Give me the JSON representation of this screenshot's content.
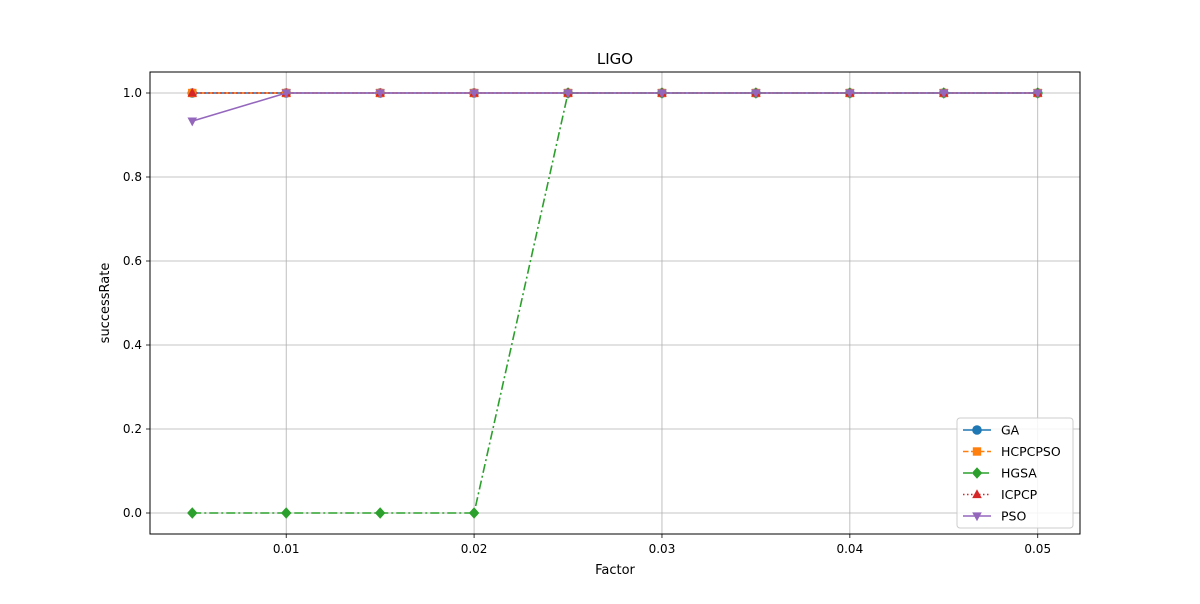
{
  "chart_data": {
    "type": "line",
    "title": "LIGO",
    "xlabel": "Factor",
    "ylabel": "successRate",
    "x": [
      0.005,
      0.01,
      0.015,
      0.02,
      0.025,
      0.03,
      0.035,
      0.04,
      0.045,
      0.05
    ],
    "xticks": [
      0.01,
      0.02,
      0.03,
      0.04,
      0.05
    ],
    "xtick_labels": [
      "0.01",
      "0.02",
      "0.03",
      "0.04",
      "0.05"
    ],
    "yticks": [
      0.0,
      0.2,
      0.4,
      0.6,
      0.8,
      1.0
    ],
    "ytick_labels": [
      "0.0",
      "0.2",
      "0.4",
      "0.6",
      "0.8",
      "1.0"
    ],
    "xlim": [
      0.00275,
      0.05225
    ],
    "ylim": [
      -0.05,
      1.05
    ],
    "grid": true,
    "legend_position": "lower-right",
    "series": [
      {
        "name": "GA",
        "values": [
          1,
          1,
          1,
          1,
          1,
          1,
          1,
          1,
          1,
          1
        ],
        "color": "#1f77b4",
        "linestyle": "solid",
        "marker": "circle"
      },
      {
        "name": "HCPCPSO",
        "values": [
          1,
          1,
          1,
          1,
          1,
          1,
          1,
          1,
          1,
          1
        ],
        "color": "#ff7f0e",
        "linestyle": "dashed",
        "marker": "square"
      },
      {
        "name": "HGSA",
        "values": [
          0,
          0,
          0,
          0,
          1,
          1,
          1,
          1,
          1,
          1
        ],
        "color": "#2ca02c",
        "linestyle": "dashdot",
        "marker": "diamond"
      },
      {
        "name": "ICPCP",
        "values": [
          1,
          1,
          1,
          1,
          1,
          1,
          1,
          1,
          1,
          1
        ],
        "color": "#d62728",
        "linestyle": "dotted",
        "marker": "triangle-up"
      },
      {
        "name": "PSO",
        "values": [
          0.933,
          1,
          1,
          1,
          1,
          1,
          1,
          1,
          1,
          1
        ],
        "color": "#9467bd",
        "linestyle": "solid",
        "marker": "triangle-down"
      }
    ]
  }
}
